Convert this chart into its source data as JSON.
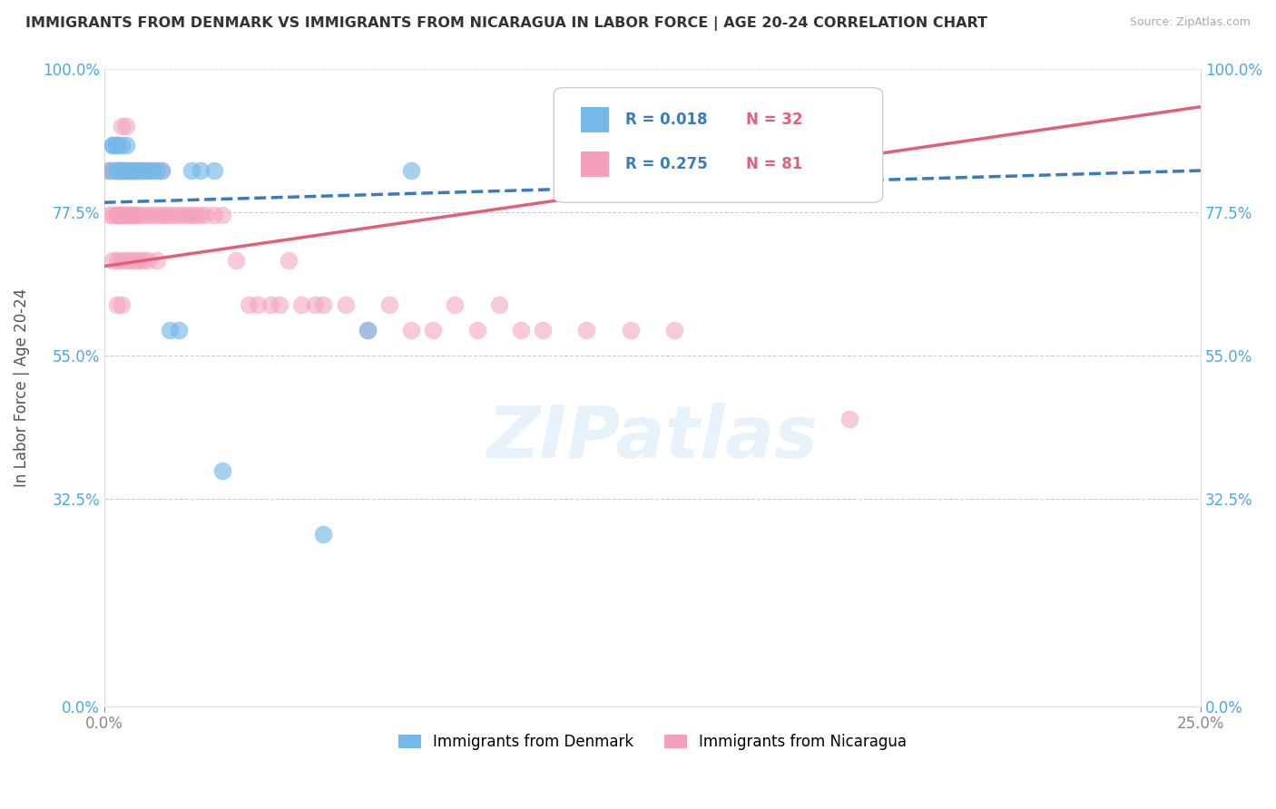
{
  "title": "IMMIGRANTS FROM DENMARK VS IMMIGRANTS FROM NICARAGUA IN LABOR FORCE | AGE 20-24 CORRELATION CHART",
  "source": "Source: ZipAtlas.com",
  "ylabel": "In Labor Force | Age 20-24",
  "xlim": [
    0.0,
    0.25
  ],
  "ylim": [
    0.0,
    1.0
  ],
  "yticks": [
    0.0,
    0.325,
    0.55,
    0.775,
    1.0
  ],
  "ytick_labels": [
    "0.0%",
    "32.5%",
    "55.0%",
    "77.5%",
    "100.0%"
  ],
  "xticks": [
    0.0,
    0.25
  ],
  "xtick_labels": [
    "0.0%",
    "25.0%"
  ],
  "watermark_text": "ZIPatlas",
  "legend_denmark_r": "R = 0.018",
  "legend_denmark_n": "N = 32",
  "legend_nicaragua_r": "R = 0.275",
  "legend_nicaragua_n": "N = 81",
  "color_denmark": "#74b9e8",
  "color_nicaragua": "#f4a0bb",
  "trendline_denmark_color": "#3a7abf",
  "trendline_nicaragua_color": "#e0607a",
  "denmark_x": [
    0.001,
    0.002,
    0.002,
    0.003,
    0.003,
    0.003,
    0.003,
    0.004,
    0.004,
    0.004,
    0.004,
    0.005,
    0.005,
    0.005,
    0.006,
    0.007,
    0.007,
    0.008,
    0.009,
    0.01,
    0.011,
    0.012,
    0.013,
    0.015,
    0.017,
    0.02,
    0.022,
    0.025,
    0.027,
    0.05,
    0.06,
    0.07
  ],
  "denmark_y": [
    0.84,
    0.88,
    0.88,
    0.88,
    0.88,
    0.84,
    0.84,
    0.88,
    0.84,
    0.84,
    0.84,
    0.88,
    0.84,
    0.84,
    0.84,
    0.84,
    0.84,
    0.84,
    0.84,
    0.84,
    0.84,
    0.84,
    0.84,
    0.59,
    0.59,
    0.84,
    0.84,
    0.84,
    0.37,
    0.27,
    0.59,
    0.84
  ],
  "nicaragua_x": [
    0.001,
    0.001,
    0.002,
    0.002,
    0.002,
    0.002,
    0.003,
    0.003,
    0.003,
    0.003,
    0.003,
    0.003,
    0.004,
    0.004,
    0.004,
    0.004,
    0.004,
    0.004,
    0.005,
    0.005,
    0.005,
    0.005,
    0.005,
    0.006,
    0.006,
    0.006,
    0.006,
    0.007,
    0.007,
    0.007,
    0.007,
    0.008,
    0.008,
    0.008,
    0.009,
    0.009,
    0.009,
    0.01,
    0.01,
    0.01,
    0.011,
    0.011,
    0.012,
    0.012,
    0.013,
    0.013,
    0.014,
    0.015,
    0.016,
    0.017,
    0.018,
    0.019,
    0.02,
    0.021,
    0.022,
    0.023,
    0.025,
    0.027,
    0.03,
    0.033,
    0.035,
    0.038,
    0.04,
    0.042,
    0.045,
    0.048,
    0.05,
    0.055,
    0.06,
    0.065,
    0.07,
    0.075,
    0.08,
    0.085,
    0.09,
    0.095,
    0.1,
    0.11,
    0.12,
    0.13,
    0.17
  ],
  "nicaragua_y": [
    0.84,
    0.77,
    0.84,
    0.84,
    0.77,
    0.7,
    0.84,
    0.77,
    0.77,
    0.77,
    0.7,
    0.63,
    0.91,
    0.84,
    0.77,
    0.77,
    0.7,
    0.63,
    0.91,
    0.84,
    0.77,
    0.77,
    0.7,
    0.84,
    0.77,
    0.77,
    0.7,
    0.84,
    0.77,
    0.77,
    0.7,
    0.84,
    0.77,
    0.7,
    0.84,
    0.77,
    0.7,
    0.84,
    0.77,
    0.7,
    0.84,
    0.77,
    0.77,
    0.7,
    0.84,
    0.77,
    0.77,
    0.77,
    0.77,
    0.77,
    0.77,
    0.77,
    0.77,
    0.77,
    0.77,
    0.77,
    0.77,
    0.77,
    0.7,
    0.63,
    0.63,
    0.63,
    0.63,
    0.7,
    0.63,
    0.63,
    0.63,
    0.63,
    0.59,
    0.63,
    0.59,
    0.59,
    0.63,
    0.59,
    0.63,
    0.59,
    0.59,
    0.59,
    0.59,
    0.59,
    0.45
  ],
  "dk_trend_x0": 0.0,
  "dk_trend_y0": 0.79,
  "dk_trend_x1": 0.25,
  "dk_trend_y1": 0.84,
  "ni_trend_x0": 0.0,
  "ni_trend_y0": 0.69,
  "ni_trend_x1": 0.25,
  "ni_trend_y1": 0.94
}
